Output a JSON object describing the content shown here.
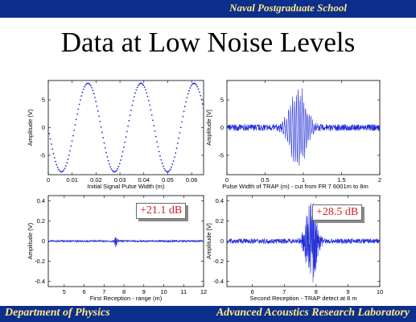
{
  "header": {
    "institution": "Naval Postgraduate School"
  },
  "title": "Data at Low Noise Levels",
  "footer": {
    "left": "Department of Physics",
    "right": "Advanced Acoustics Research Laboratory"
  },
  "colors": {
    "bar": "#0b2f8a",
    "bar_text": "#ffe68a",
    "signal": "#1f2bd6",
    "badge_text": "#d81c1c"
  },
  "annotations": {
    "gain1": "+21.1 dB",
    "gain2": "+28.5 dB"
  },
  "chart_data": [
    {
      "type": "scatter",
      "xlabel": "Initial Signal Pulse Width (m)",
      "ylabel": "Amplitude (V)",
      "xlim": [
        0,
        0.065
      ],
      "ylim": [
        -8.5,
        8.5
      ],
      "xticks": [
        "0",
        "0.01",
        "0.02",
        "0.03",
        "0.04",
        "0.05",
        "0.06"
      ],
      "yticks": [
        "5",
        "0",
        "-5"
      ],
      "series": [
        {
          "waveform": "sine",
          "amplitude": 8,
          "period_m": 0.0222,
          "points": 150
        }
      ]
    },
    {
      "type": "line",
      "xlabel": "Pulse Width of TRAP (m) - cut from FR 7 6001m to 8m",
      "ylabel": "Amplitude [V]",
      "xlim": [
        0,
        2
      ],
      "ylim": [
        -8.5,
        8.5
      ],
      "xticks": [
        "0",
        "0.5",
        "1",
        "1.5",
        "2"
      ],
      "yticks": [
        "5",
        "0",
        "-5"
      ],
      "series": [
        {
          "waveform": "chirp-burst",
          "peak_x": 0.93,
          "peak_amplitude": 8,
          "noise": 0.6
        }
      ]
    },
    {
      "type": "line",
      "xlabel": "First Reception - range (m)",
      "ylabel": "Amplitude (V)",
      "xlim": [
        4.2,
        12
      ],
      "ylim": [
        -0.45,
        0.45
      ],
      "xticks": [
        "5",
        "6",
        "7",
        "8",
        "9",
        "10",
        "11",
        "12"
      ],
      "yticks": [
        "0.4",
        "0.2",
        "0",
        "-0.2",
        "-0.4"
      ],
      "series": [
        {
          "waveform": "noise-with-spike",
          "noise": 0.01,
          "spike_x": 7.6,
          "spike_amplitude": 0.08
        }
      ]
    },
    {
      "type": "line",
      "xlabel": "Second Reception - TRAP detect at 8 m",
      "ylabel": "Amplitude [V]",
      "xlim": [
        5.2,
        10
      ],
      "ylim": [
        -0.45,
        0.45
      ],
      "xticks": [
        "6",
        "7",
        "8",
        "9",
        "10"
      ],
      "yticks": [
        "0.4",
        "0.2",
        "0",
        "-0.2",
        "-0.4"
      ],
      "series": [
        {
          "waveform": "noise-with-burst",
          "noise": 0.025,
          "burst_x": 7.85,
          "burst_amplitude": 0.42
        }
      ]
    }
  ]
}
